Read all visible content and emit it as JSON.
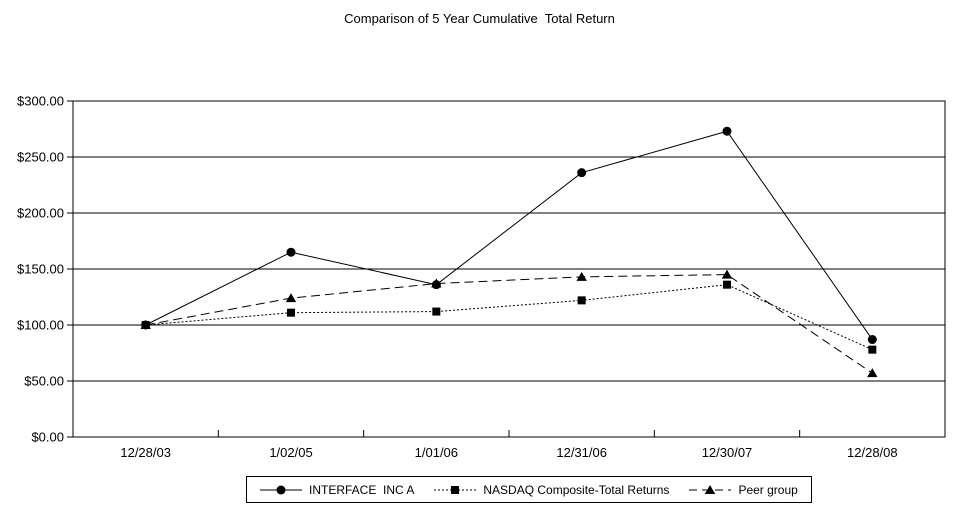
{
  "chart_data": {
    "type": "line",
    "title": "Comparison of 5 Year Cumulative  Total Return",
    "categories": [
      "12/28/03",
      "1/02/05",
      "1/01/06",
      "12/31/06",
      "12/30/07",
      "12/28/08"
    ],
    "series": [
      {
        "name": "INTERFACE  INC A",
        "marker": "circle",
        "line": "solid",
        "values": [
          100,
          165,
          136,
          236,
          273,
          87
        ]
      },
      {
        "name": "NASDAQ Composite-Total Returns",
        "marker": "square",
        "line": "dotted",
        "values": [
          100,
          111,
          112,
          122,
          136,
          78
        ]
      },
      {
        "name": "Peer group",
        "marker": "triangle",
        "line": "dashed",
        "values": [
          100,
          124,
          137,
          143,
          145,
          57
        ]
      }
    ],
    "xlabel": "",
    "ylabel": "",
    "ylim": [
      0,
      300
    ],
    "ytick_step": 50,
    "ytick_labels": [
      "$0.00",
      "$50.00",
      "$100.00",
      "$150.00",
      "$200.00",
      "$250.00",
      "$300.00"
    ],
    "grid": "horizontal",
    "legend_position": "bottom",
    "colors": {
      "foreground": "#000000",
      "background": "#ffffff"
    }
  }
}
